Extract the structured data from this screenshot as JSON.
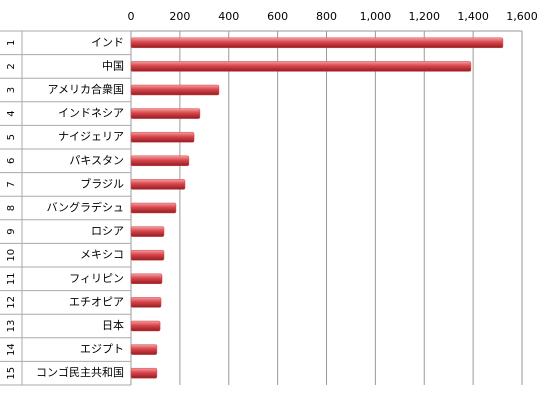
{
  "chart_data": {
    "type": "bar",
    "orientation": "horizontal",
    "ranks": [
      1,
      2,
      3,
      4,
      5,
      6,
      7,
      8,
      9,
      10,
      11,
      12,
      13,
      14,
      15
    ],
    "categories": [
      "インド",
      "中国",
      "アメリカ合衆国",
      "インドネシア",
      "ナイジェリア",
      "パキスタン",
      "ブラジル",
      "バングラデシュ",
      "ロシア",
      "メキシコ",
      "フィリピン",
      "エチオピア",
      "日本",
      "エジプト",
      "コンゴ民主共和国"
    ],
    "values": [
      1522,
      1391,
      360,
      282,
      258,
      237,
      221,
      184,
      135,
      135,
      127,
      123,
      119,
      106,
      106
    ],
    "color": "#d9444a",
    "xlim": [
      0,
      1600
    ],
    "xticks": [
      0,
      200,
      400,
      600,
      800,
      {
        "value": 1000,
        "label": "1,000"
      },
      {
        "value": 1200,
        "label": "1,200"
      },
      {
        "value": 1400,
        "label": "1,400"
      },
      {
        "value": 1600,
        "label": "1,600"
      }
    ],
    "grid": true
  }
}
